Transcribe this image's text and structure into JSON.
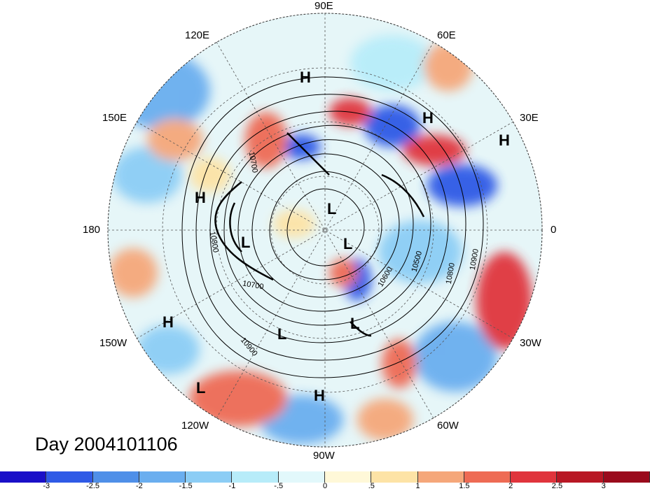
{
  "title": "Day 2004101106",
  "longitude_labels": [
    "90E",
    "60E",
    "30E",
    "0",
    "30W",
    "60W",
    "90W",
    "120W",
    "150W",
    "180",
    "150E",
    "120E"
  ],
  "pressure_centers": [
    "H",
    "H",
    "H",
    "H",
    "L",
    "L",
    "L",
    "L",
    "L",
    "H",
    "H",
    "L"
  ],
  "contour_labels": [
    "10800",
    "10700",
    "10900",
    "10600",
    "10500",
    "10800",
    "10900",
    "10700"
  ],
  "colorbar": {
    "ticks": [
      "-3",
      "-2.5",
      "-2",
      "-1.5",
      "-1",
      "-.5",
      "0",
      ".5",
      "1",
      "1.5",
      "2",
      "2.5",
      "3"
    ],
    "colors": [
      "#1a10c8",
      "#2f5ae6",
      "#4f8fe8",
      "#6aaeef",
      "#8ccdf5",
      "#b7ecf9",
      "#e2f8fb",
      "#fff8d8",
      "#fde3a6",
      "#f5a77a",
      "#ee6b54",
      "#e0343c",
      "#b81724",
      "#9a0a1c"
    ]
  }
}
